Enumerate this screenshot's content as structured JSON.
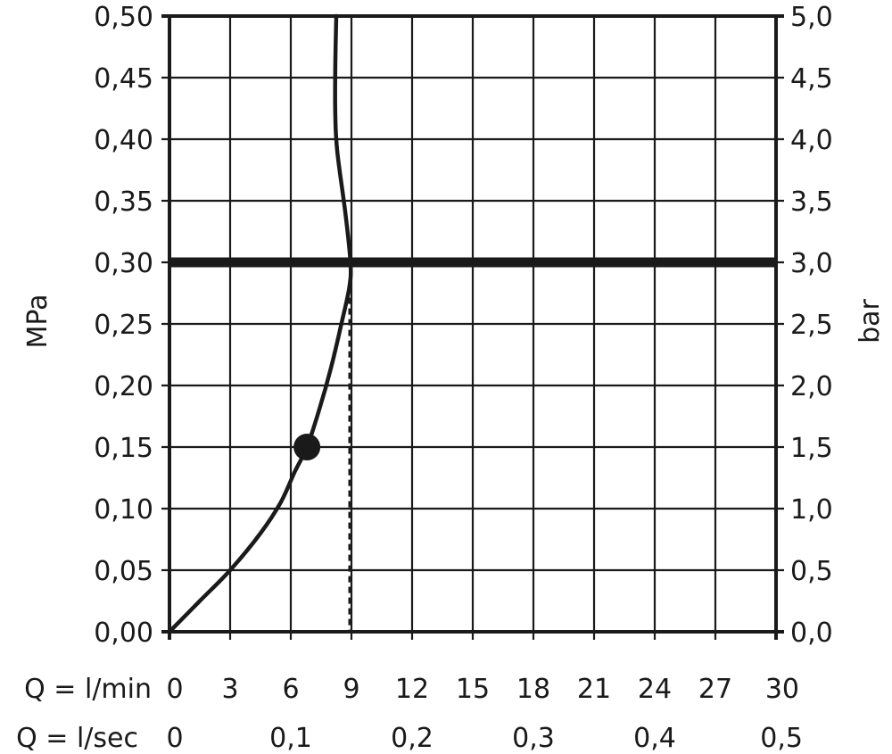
{
  "chart_data": {
    "type": "line",
    "title": "",
    "ylabel_left": "MPa",
    "ylabel_right": "bar",
    "x_row_label_1": "Q = l/min",
    "x_row_label_2": "Q = l/sec",
    "xlim": [
      0,
      30
    ],
    "ylim": [
      0,
      0.5
    ],
    "y_ticks_left": [
      "0,00",
      "0,05",
      "0,10",
      "0,15",
      "0,20",
      "0,25",
      "0,30",
      "0,35",
      "0,40",
      "0,45",
      "0,50"
    ],
    "y_ticks_right": [
      "0,0",
      "0,5",
      "1,0",
      "1,5",
      "2,0",
      "2,5",
      "3,0",
      "3,5",
      "4,0",
      "4,5",
      "5,0"
    ],
    "x_ticks_lmin": [
      "0",
      "3",
      "6",
      "9",
      "12",
      "15",
      "18",
      "21",
      "24",
      "27",
      "30"
    ],
    "x_ticks_lsec": [
      {
        "value": 0,
        "label": "0"
      },
      {
        "value": 6,
        "label": "0,1"
      },
      {
        "value": 12,
        "label": "0,2"
      },
      {
        "value": 18,
        "label": "0,3"
      },
      {
        "value": 24,
        "label": "0,4"
      },
      {
        "value": 30,
        "label": "0,5"
      }
    ],
    "grid": true,
    "series": [
      {
        "x": [
          0,
          1.5,
          3.0,
          4.5,
          5.5,
          6.2,
          6.8,
          7.4,
          8.0,
          8.5,
          8.9,
          8.95,
          8.7,
          8.3,
          8.2,
          8.2,
          8.25
        ],
        "y": [
          0.0,
          0.025,
          0.05,
          0.08,
          0.105,
          0.13,
          0.15,
          0.18,
          0.215,
          0.25,
          0.28,
          0.3,
          0.34,
          0.39,
          0.42,
          0.46,
          0.5
        ]
      }
    ],
    "reference_line": {
      "y": 0.3
    },
    "marker_point": {
      "x": 6.8,
      "y": 0.15
    },
    "dashed_vertical": {
      "x": 8.9,
      "y_top": 0.28
    }
  }
}
